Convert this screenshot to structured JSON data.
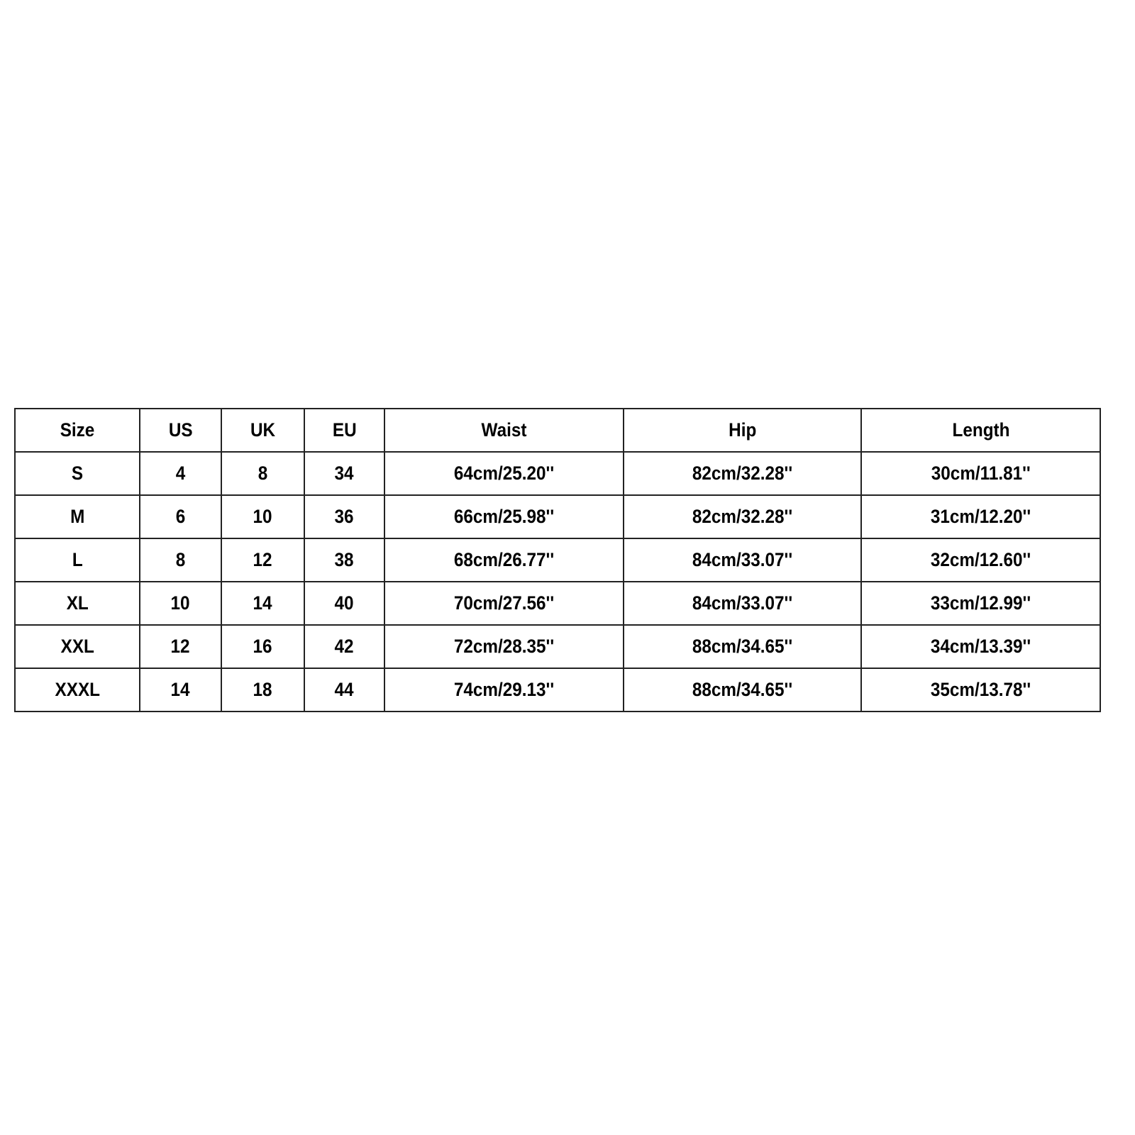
{
  "size_chart": {
    "headers": [
      "Size",
      "US",
      "UK",
      "EU",
      "Waist",
      "Hip",
      "Length"
    ],
    "rows": [
      [
        "S",
        "4",
        "8",
        "34",
        "64cm/25.20''",
        "82cm/32.28''",
        "30cm/11.81''"
      ],
      [
        "M",
        "6",
        "10",
        "36",
        "66cm/25.98''",
        "82cm/32.28''",
        "31cm/12.20''"
      ],
      [
        "L",
        "8",
        "12",
        "38",
        "68cm/26.77''",
        "84cm/33.07''",
        "32cm/12.60''"
      ],
      [
        "XL",
        "10",
        "14",
        "40",
        "70cm/27.56''",
        "84cm/33.07''",
        "33cm/12.99''"
      ],
      [
        "XXL",
        "12",
        "16",
        "42",
        "72cm/28.35''",
        "88cm/34.65''",
        "34cm/13.39''"
      ],
      [
        "XXXL",
        "14",
        "18",
        "44",
        "74cm/29.13''",
        "88cm/34.65''",
        "35cm/13.78''"
      ]
    ]
  }
}
